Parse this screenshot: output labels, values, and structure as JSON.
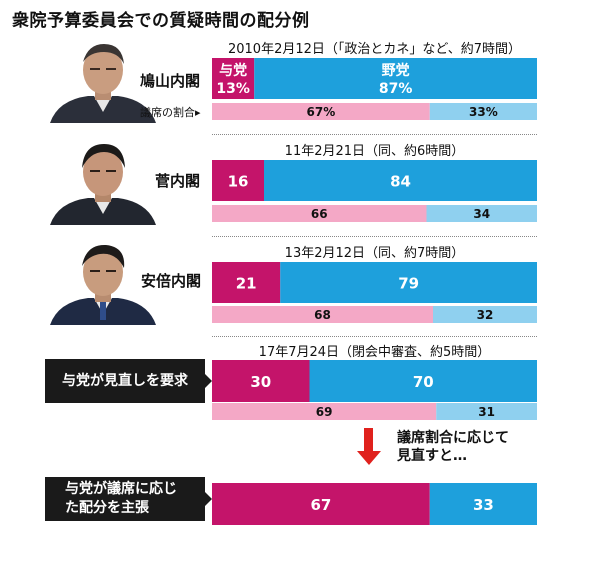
{
  "title": "衆院予算委員会での質疑時間の配分例",
  "colors": {
    "ruling": "#c4146a",
    "opposition": "#1ea0dc",
    "seat_ruling": "#f4a8c6",
    "seat_opposition": "#8fd0ef",
    "arrow": "#e0211d"
  },
  "labels": {
    "hatoyama": "鳩山内閣",
    "kan": "菅内閣",
    "abe": "安倍内閣",
    "ruling_name": "与党",
    "opposition_name": "野党",
    "seat_ratio": "議席の割合▸"
  },
  "black_labels": {
    "request_review": "与党が見直しを要求",
    "claim": "与党が議席に応じた配分を主張"
  },
  "note": {
    "line1": "議席割合に応じて",
    "line2": "見直すと…"
  },
  "chart_data": {
    "type": "bar",
    "title": "衆院予算委員会での質疑時間の配分例",
    "series": [
      {
        "name": "与党",
        "unit": "%"
      },
      {
        "name": "野党",
        "unit": "%"
      }
    ],
    "rows": [
      {
        "header": "2010年2月12日（「政治とカネ」など、約7時間）",
        "row_label": "鳩山内閣",
        "time_pct": [
          13,
          87
        ],
        "time_labels": [
          "13%",
          "87%"
        ],
        "seat_pct": [
          67,
          33
        ],
        "seat_labels": [
          "67%",
          "33%"
        ]
      },
      {
        "header": "11年2月21日（同、約6時間）",
        "row_label": "菅内閣",
        "time_pct": [
          16,
          84
        ],
        "time_labels": [
          "16",
          "84"
        ],
        "seat_pct": [
          66,
          34
        ],
        "seat_labels": [
          "66",
          "34"
        ]
      },
      {
        "header": "13年2月12日（同、約7時間）",
        "row_label": "安倍内閣",
        "time_pct": [
          21,
          79
        ],
        "time_labels": [
          "21",
          "79"
        ],
        "seat_pct": [
          68,
          32
        ],
        "seat_labels": [
          "68",
          "32"
        ]
      },
      {
        "header": "17年7月24日（閉会中審査、約5時間）",
        "row_label": "与党が見直しを要求",
        "time_pct": [
          30,
          70
        ],
        "time_labels": [
          "30",
          "70"
        ],
        "seat_pct": [
          69,
          31
        ],
        "seat_labels": [
          "69",
          "31"
        ]
      },
      {
        "header": "",
        "row_label": "与党が議席に応じた配分を主張",
        "time_pct": [
          67,
          33
        ],
        "time_labels": [
          "67",
          "33"
        ],
        "seat_pct": null,
        "seat_labels": null
      }
    ]
  }
}
